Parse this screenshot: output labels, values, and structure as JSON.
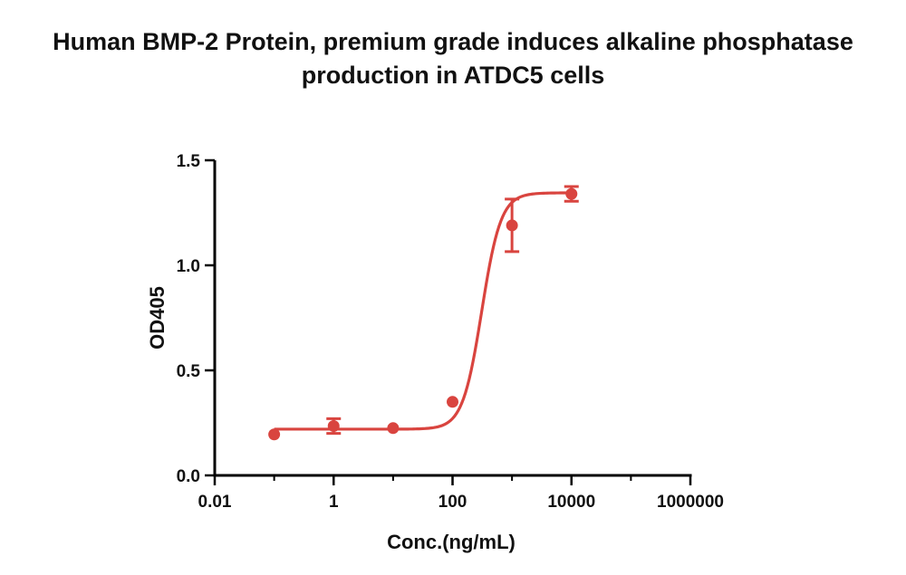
{
  "chart_data": {
    "type": "scatter",
    "title_lines": [
      "Human BMP-2 Protein, premium grade induces alkaline phosphatase",
      "production in ATDC5 cells"
    ],
    "xlabel": "Conc.(ng/mL)",
    "ylabel": "OD405",
    "x_scale": "log",
    "xlim": [
      0.01,
      1000000
    ],
    "ylim": [
      0.0,
      1.5
    ],
    "x_ticks": [
      0.01,
      1,
      100,
      10000,
      1000000
    ],
    "x_tick_labels": [
      "0.01",
      "1",
      "100",
      "10000",
      "1000000"
    ],
    "y_ticks": [
      0.0,
      0.5,
      1.0,
      1.5
    ],
    "y_tick_labels": [
      "0.0",
      "0.5",
      "1.0",
      "1.5"
    ],
    "grid": false,
    "series": [
      {
        "color": "#d9443f",
        "points": [
          {
            "x": 0.1,
            "y": 0.195,
            "err": 0.0
          },
          {
            "x": 1,
            "y": 0.235,
            "err": 0.035
          },
          {
            "x": 10,
            "y": 0.225,
            "err": 0.0
          },
          {
            "x": 100,
            "y": 0.35,
            "err": 0.0
          },
          {
            "x": 1000,
            "y": 1.19,
            "err": 0.125
          },
          {
            "x": 10000,
            "y": 1.34,
            "err": 0.035
          }
        ],
        "fit": {
          "model": "4PL",
          "bottom": 0.22,
          "top": 1.345,
          "ec50": 310,
          "hill": 2.7
        }
      }
    ]
  }
}
